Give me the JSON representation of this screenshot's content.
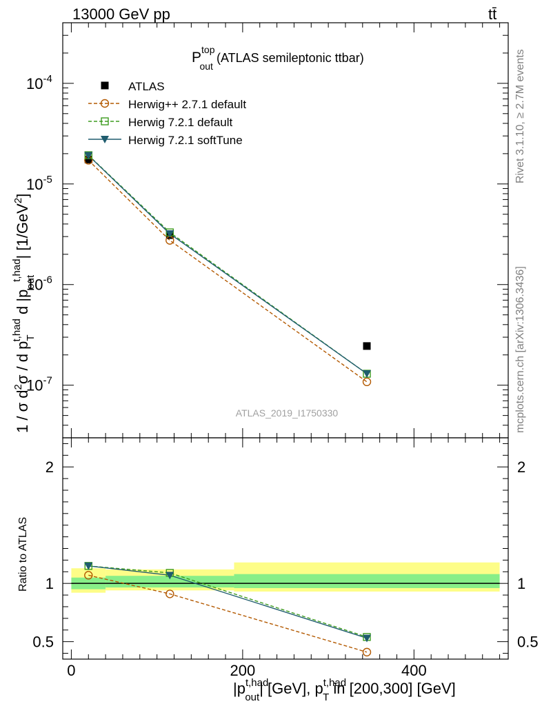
{
  "header": {
    "left": "13000 GeV pp",
    "right": "tt̄"
  },
  "side_labels": {
    "rivet": "Rivet 3.1.10, ≥ 2.7M events",
    "mcplots": "mcplots.cern.ch [arXiv:1306.3436]"
  },
  "colors": {
    "ATLAS": "#000000",
    "Herwig++ 2.7.1 default": "#b35900",
    "Herwig 7.2.1 default": "#3c9b1e",
    "Herwig 7.2.1 softTune": "#1f5c6e",
    "band_inner": "#88ee88",
    "band_outer": "#fdfd88",
    "watermark": "#a0a0a0"
  },
  "chart_data": [
    {
      "type": "scatter",
      "panel": "main",
      "title_main": "P",
      "title_sup": "top",
      "title_sub": "out",
      "title_rest": " (ATLAS semileptonic ttbar)",
      "watermark": "ATLAS_2019_I1750330",
      "ylabel": "1 / σ d²σ / d p_T^{t,had} d |p_out^{t,had}| [1/GeV²]",
      "yscale": "log",
      "ylim": [
        3e-08,
        0.0004
      ],
      "xlim": [
        -10,
        510
      ],
      "ytick_labels": [
        "10^-7",
        "10^-6",
        "10^-5",
        "10^-4"
      ],
      "legend_position": "top-left",
      "series": [
        {
          "name": "ATLAS",
          "marker": "filled-square",
          "x": [
            20,
            115,
            345
          ],
          "y": [
            1.75e-05,
            3.1e-06,
            2.45e-07
          ]
        },
        {
          "name": "Herwig++ 2.7.1 default",
          "marker": "open-circle",
          "line": "dashed",
          "x": [
            20,
            115,
            345
          ],
          "y": [
            1.72e-05,
            2.75e-06,
            1.08e-07
          ]
        },
        {
          "name": "Herwig 7.2.1 default",
          "marker": "open-square",
          "line": "dashed",
          "x": [
            20,
            115,
            345
          ],
          "y": [
            1.93e-05,
            3.3e-06,
            1.3e-07
          ]
        },
        {
          "name": "Herwig 7.2.1 softTune",
          "marker": "filled-triangle-down",
          "line": "solid",
          "x": [
            20,
            115,
            345
          ],
          "y": [
            1.92e-05,
            3.2e-06,
            1.3e-07
          ]
        }
      ]
    },
    {
      "type": "scatter",
      "panel": "ratio",
      "ylabel": "Ratio to ATLAS",
      "xlabel": "|p_out^{t,had}| [GeV], p_T^{t,had} in [200,300] [GeV]",
      "ylim": [
        0.35,
        2.25
      ],
      "xlim": [
        -10,
        510
      ],
      "xtick_labels": [
        "0",
        "200",
        "400"
      ],
      "ytick_labels": [
        "0.5",
        "1",
        "2"
      ],
      "bands": [
        {
          "x": [
            0,
            40
          ],
          "inner": [
            0.95,
            1.05
          ],
          "outer": [
            0.92,
            1.13
          ]
        },
        {
          "x": [
            40,
            190
          ],
          "inner": [
            0.965,
            1.065
          ],
          "outer": [
            0.94,
            1.12
          ]
        },
        {
          "x": [
            190,
            500
          ],
          "inner": [
            0.96,
            1.08
          ],
          "outer": [
            0.93,
            1.18
          ]
        }
      ],
      "series": [
        {
          "name": "Herwig++ 2.7.1 default",
          "x": [
            20,
            115,
            345
          ],
          "y": [
            1.07,
            0.91,
            0.41
          ]
        },
        {
          "name": "Herwig 7.2.1 default",
          "x": [
            20,
            115,
            345
          ],
          "y": [
            1.15,
            1.09,
            0.54
          ]
        },
        {
          "name": "Herwig 7.2.1 softTune",
          "x": [
            20,
            115,
            345
          ],
          "y": [
            1.15,
            1.07,
            0.53
          ]
        }
      ]
    }
  ]
}
